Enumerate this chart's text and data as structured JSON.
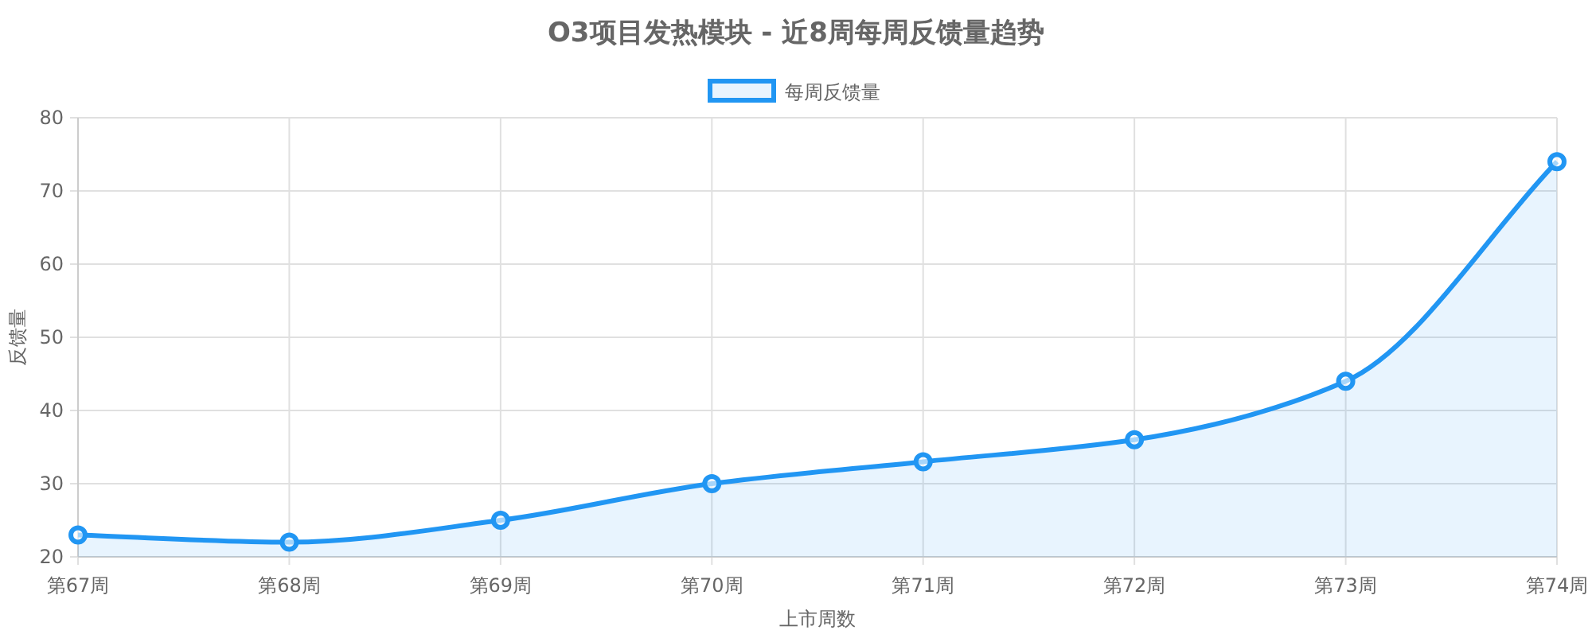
{
  "chart_data": {
    "type": "area",
    "title": "O3项目发热模块 - 近8周每周反馈量趋势",
    "xlabel": "上市周数",
    "ylabel": "反馈量",
    "categories": [
      "第67周",
      "第68周",
      "第69周",
      "第70周",
      "第71周",
      "第72周",
      "第73周",
      "第74周"
    ],
    "series": [
      {
        "name": "每周反馈量",
        "color": "#2196f3",
        "values": [
          23,
          22,
          25,
          30,
          33,
          36,
          44,
          74
        ]
      }
    ],
    "ylim": [
      20,
      80
    ],
    "yticks": [
      20,
      30,
      40,
      50,
      60,
      70,
      80
    ],
    "grid": true,
    "legend": "top",
    "marker": "circle",
    "line_style": "solid"
  }
}
